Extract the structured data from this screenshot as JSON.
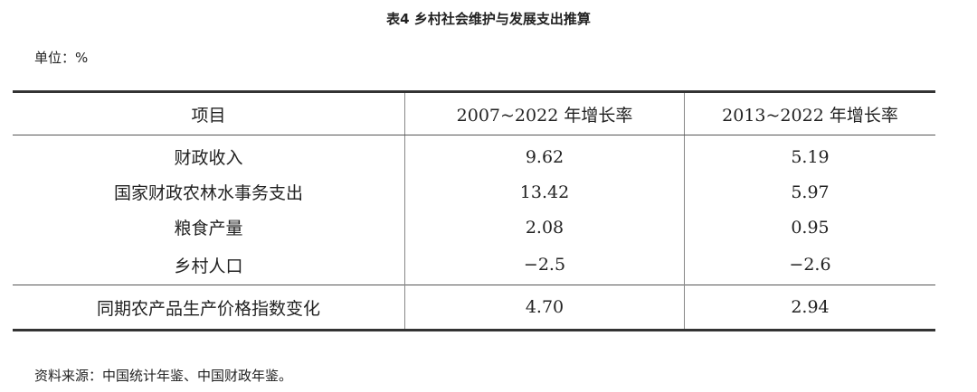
{
  "header": {
    "title": "表4 乡村社会维护与发展支出推算",
    "unit": "单位：%"
  },
  "table": {
    "columns": [
      "项目",
      "2007~2022 年增长率",
      "2013~2022 年增长率"
    ],
    "rows": [
      [
        "财政收入",
        "9.62",
        "5.19"
      ],
      [
        "国家财政农林水事务支出",
        "13.42",
        "5.97"
      ],
      [
        "粮食产量",
        "2.08",
        "0.95"
      ],
      [
        "乡村人口",
        "−2.5",
        "−2.6"
      ],
      [
        "同期农产品生产价格指数变化",
        "4.70",
        "2.94"
      ]
    ]
  },
  "footer": {
    "source": "资料来源：中国统计年鉴、中国财政年鉴。"
  }
}
